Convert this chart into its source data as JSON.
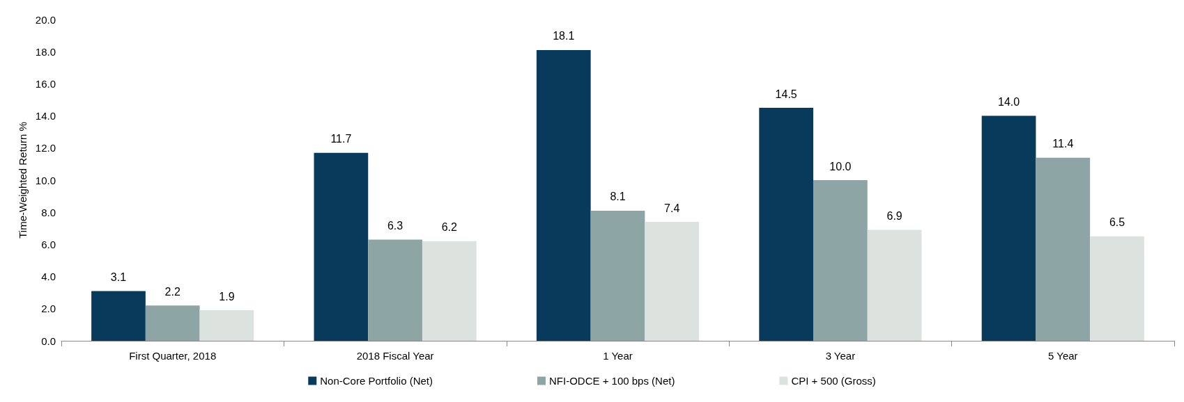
{
  "chart_data": {
    "type": "bar",
    "ylabel": "Time-Weighted Return %",
    "categories": [
      "First Quarter, 2018",
      "2018 Fiscal Year",
      "1 Year",
      "3 Year",
      "5 Year"
    ],
    "series": [
      {
        "name": "Non-Core Portfolio (Net)",
        "color": "#073a5b",
        "values": [
          3.1,
          11.7,
          18.1,
          14.5,
          14
        ],
        "value_labels": [
          "3.1",
          "11.7",
          "18.1",
          "14.5",
          "14.0"
        ]
      },
      {
        "name": "NFI-ODCE + 100 bps (Net)",
        "color": "#8ea5a5",
        "values": [
          2.2,
          6.3,
          8.1,
          10,
          11.4
        ],
        "value_labels": [
          "2.2",
          "6.3",
          "8.1",
          "10.0",
          "11.4"
        ]
      },
      {
        "name": "CPI + 500 (Gross)",
        "color": "#dce2de",
        "values": [
          1.9,
          6.2,
          7.4,
          6.9,
          6.5
        ],
        "value_labels": [
          "1.9",
          "6.2",
          "7.4",
          "6.9",
          "6.5"
        ]
      }
    ],
    "ylim": [
      0,
      20
    ],
    "yticks": [
      {
        "value": 0,
        "label": "0.0"
      },
      {
        "value": 2,
        "label": "2.0"
      },
      {
        "value": 4,
        "label": "4.0"
      },
      {
        "value": 6,
        "label": "6.0"
      },
      {
        "value": 8,
        "label": "8.0"
      },
      {
        "value": 10,
        "label": "10.0"
      },
      {
        "value": 12,
        "label": "12.0"
      },
      {
        "value": 14,
        "label": "14.0"
      },
      {
        "value": 16,
        "label": "16.0"
      },
      {
        "value": 18,
        "label": "18.0"
      },
      {
        "value": 20,
        "label": "20.0"
      }
    ],
    "grid": false,
    "legend": "bottom"
  }
}
